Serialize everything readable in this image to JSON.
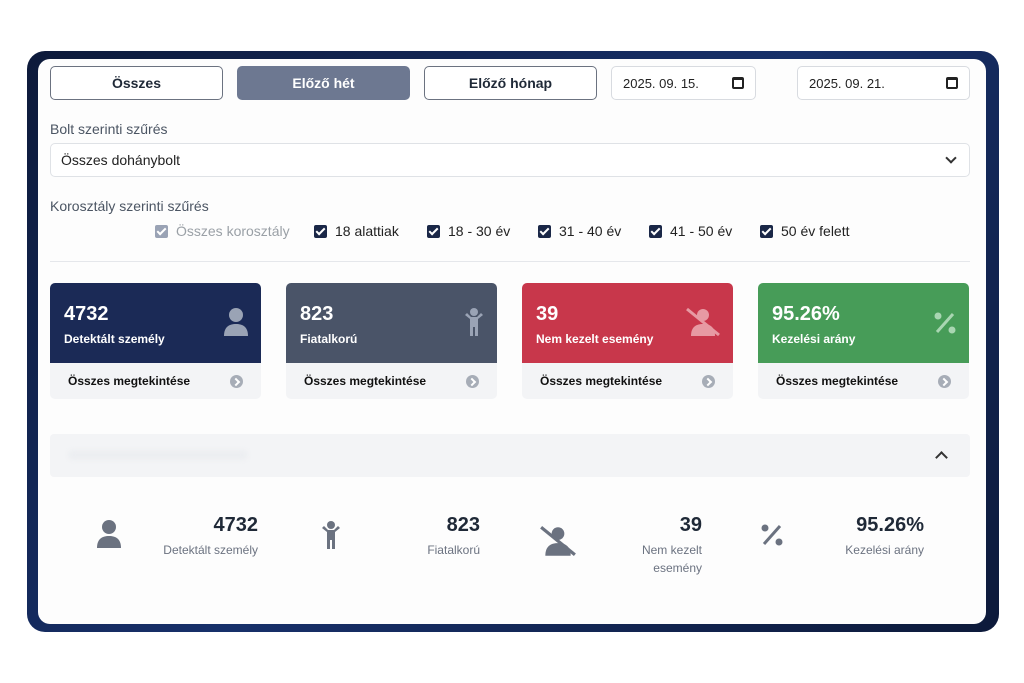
{
  "toolbar": {
    "buttons": [
      "Összes",
      "Előző hét",
      "Előző hónap"
    ],
    "active": "Előző hét",
    "date_from": "2025. 09. 15.",
    "date_to": "2025. 09. 21."
  },
  "store_filter": {
    "label": "Bolt szerinti szűrés",
    "selected": "Összes dohánybolt"
  },
  "age_filter": {
    "label": "Korosztály szerinti szűrés",
    "options": [
      "Összes korosztály",
      "18 alattiak",
      "18 - 30 év",
      "31 - 40 év",
      "41 - 50 év",
      "50 év felett"
    ]
  },
  "cards": [
    {
      "value": "4732",
      "label": "Detektált személy",
      "link": "Összes megtekintése",
      "color": "#1b2a56",
      "icon": "person-icon"
    },
    {
      "value": "823",
      "label": "Fiatalkorú",
      "link": "Összes megtekintése",
      "color": "#4a5468",
      "icon": "child-icon"
    },
    {
      "value": "39",
      "label": "Nem kezelt esemény",
      "link": "Összes megtekintése",
      "color": "#c8374b",
      "icon": "person-off-icon"
    },
    {
      "value": "95.26%",
      "label": "Kezelési arány",
      "link": "Összes megtekintése",
      "color": "#479c58",
      "icon": "percent-icon"
    }
  ],
  "summary": [
    {
      "value": "4732",
      "label": "Detektált személy"
    },
    {
      "value": "823",
      "label": "Fiatalkorú"
    },
    {
      "value": "39",
      "label": "Nem kezelt esemény"
    },
    {
      "value": "95.26%",
      "label": "Kezelési arány"
    }
  ]
}
